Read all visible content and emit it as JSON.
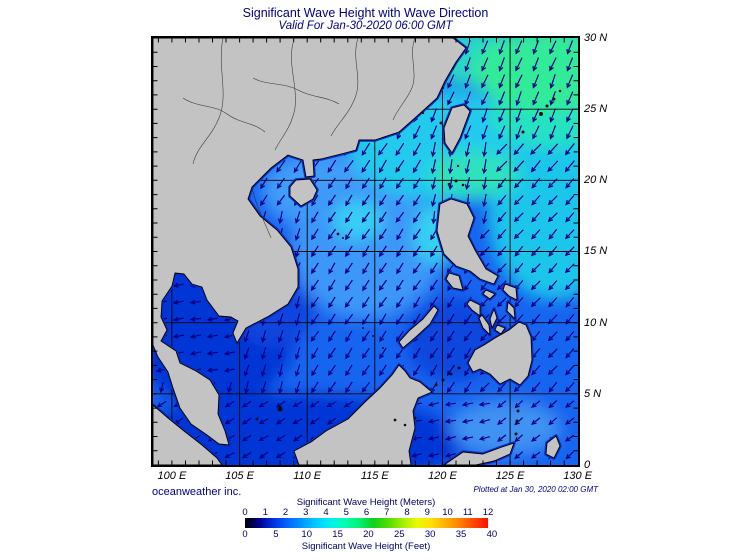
{
  "header": {
    "title": "Significant Wave Height with Wave Direction",
    "subtitle": "Valid For Jan-30-2020 06:00 GMT"
  },
  "map": {
    "lon_tick_labels": [
      "100 E",
      "105 E",
      "110 E",
      "115 E",
      "120 E",
      "125 E",
      "130 E"
    ],
    "lat_tick_labels": [
      "30 N",
      "25 N",
      "20 N",
      "15 N",
      "10 N",
      "5 N",
      "0"
    ]
  },
  "footer": {
    "credit": "oceanweather inc.",
    "plotted": "Plotted at Jan 30, 2020 02:00 GMT"
  },
  "colorbar": {
    "title_meters": "Significant Wave Height (Meters)",
    "title_feet": "Significant Wave Height (Feet)",
    "meters_ticks": [
      "0",
      "1",
      "2",
      "3",
      "4",
      "5",
      "6",
      "7",
      "8",
      "9",
      "10",
      "11",
      "12"
    ],
    "feet_ticks": [
      "0",
      "5",
      "10",
      "15",
      "20",
      "25",
      "30",
      "35",
      "40"
    ],
    "gradient": [
      "#000000",
      "#000090",
      "#0033E0",
      "#0066FF",
      "#0099FF",
      "#00CCFF",
      "#00F0F0",
      "#00FFB0",
      "#00F070",
      "#10D020",
      "#50DC00",
      "#A0EE00",
      "#E8FA00",
      "#FFE000",
      "#FFB000",
      "#FF8000",
      "#FF4800",
      "#FF1000"
    ]
  },
  "colors": {
    "annotation": "#000080",
    "land": "#C3C3C3",
    "sea_base": "#1765F0",
    "arrow": "#000080",
    "coast_fringe": "#0A2FC8"
  }
}
